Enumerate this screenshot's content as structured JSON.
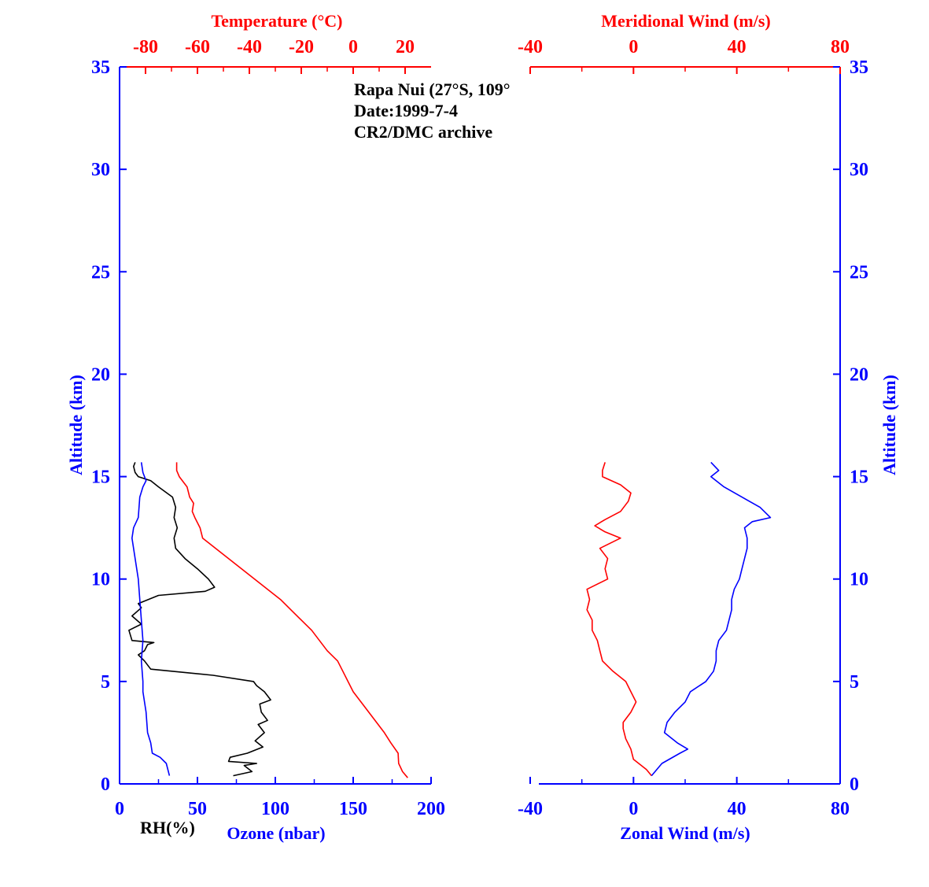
{
  "colors": {
    "blue": "#0000FF",
    "red": "#FF0000",
    "black": "#000000"
  },
  "annotation": {
    "line1": "Rapa Nui (27°S, 109°",
    "line2": "Date:1999-7-4",
    "line3": "CR2/DMC archive"
  },
  "chart_data": [
    {
      "type": "line",
      "panel": "left",
      "top_axis": {
        "label": "Temperature (°C)",
        "range": [
          -90,
          30
        ],
        "ticks": [
          -80,
          -60,
          -40,
          -20,
          0,
          20
        ],
        "color": "#FF0000"
      },
      "bottom_axis": {
        "label": "Ozone (nbar)",
        "secondary_label": "RH(%)",
        "range": [
          0,
          200
        ],
        "ticks": [
          0,
          50,
          100,
          150,
          200
        ],
        "color": "#0000FF"
      },
      "y_axis": {
        "label": "Altitude (km)",
        "range": [
          0,
          35
        ],
        "ticks": [
          0,
          5,
          10,
          15,
          20,
          25,
          30,
          35
        ],
        "color": "#0000FF"
      },
      "series": [
        {
          "name": "Temperature (°C)",
          "axis": "top",
          "color": "#FF0000",
          "points": [
            [
              21,
              0.3
            ],
            [
              19,
              0.6
            ],
            [
              17.5,
              1
            ],
            [
              17.3,
              1.5
            ],
            [
              14.5,
              2
            ],
            [
              12,
              2.5
            ],
            [
              9,
              3
            ],
            [
              6,
              3.5
            ],
            [
              3,
              4
            ],
            [
              0,
              4.5
            ],
            [
              -2,
              5
            ],
            [
              -4,
              5.5
            ],
            [
              -6,
              6
            ],
            [
              -10,
              6.5
            ],
            [
              -13,
              7
            ],
            [
              -16,
              7.5
            ],
            [
              -20,
              8
            ],
            [
              -24,
              8.5
            ],
            [
              -28,
              9
            ],
            [
              -33,
              9.5
            ],
            [
              -38,
              10
            ],
            [
              -43,
              10.5
            ],
            [
              -48,
              11
            ],
            [
              -53,
              11.5
            ],
            [
              -58,
              12
            ],
            [
              -59,
              12.5
            ],
            [
              -61,
              13
            ],
            [
              -62,
              13.3
            ],
            [
              -61.5,
              13.7
            ],
            [
              -63,
              14
            ],
            [
              -64,
              14.5
            ],
            [
              -67,
              15
            ],
            [
              -68,
              15.3
            ],
            [
              -68,
              15.7
            ]
          ]
        },
        {
          "name": "RH(%)",
          "axis": "bottom",
          "color": "#000000",
          "points": [
            [
              73,
              0.4
            ],
            [
              85,
              0.6
            ],
            [
              80,
              0.9
            ],
            [
              88,
              1.0
            ],
            [
              70,
              1.1
            ],
            [
              71,
              1.3
            ],
            [
              82,
              1.5
            ],
            [
              92,
              1.8
            ],
            [
              87,
              2.1
            ],
            [
              93,
              2.5
            ],
            [
              89,
              2.9
            ],
            [
              95,
              3.1
            ],
            [
              91,
              3.5
            ],
            [
              90,
              3.9
            ],
            [
              97,
              4.1
            ],
            [
              93,
              4.5
            ],
            [
              88,
              4.8
            ],
            [
              86,
              5.0
            ],
            [
              60,
              5.3
            ],
            [
              20,
              5.6
            ],
            [
              16,
              6.0
            ],
            [
              12,
              6.3
            ],
            [
              16,
              6.5
            ],
            [
              18,
              6.8
            ],
            [
              22,
              6.9
            ],
            [
              8,
              7.0
            ],
            [
              6,
              7.5
            ],
            [
              14,
              7.8
            ],
            [
              8,
              8.2
            ],
            [
              14,
              8.6
            ],
            [
              12,
              8.8
            ],
            [
              25,
              9.2
            ],
            [
              55,
              9.4
            ],
            [
              61,
              9.6
            ],
            [
              57,
              10
            ],
            [
              50,
              10.5
            ],
            [
              42,
              11
            ],
            [
              36,
              11.5
            ],
            [
              35,
              12
            ],
            [
              37,
              12.5
            ],
            [
              35,
              13
            ],
            [
              36,
              13.5
            ],
            [
              34,
              14
            ],
            [
              25,
              14.5
            ],
            [
              20,
              14.8
            ],
            [
              12,
              15
            ],
            [
              10,
              15.2
            ],
            [
              9,
              15.5
            ],
            [
              10,
              15.7
            ]
          ]
        },
        {
          "name": "Ozone (nbar)",
          "axis": "bottom",
          "color": "#0000FF",
          "points": [
            [
              32,
              0.4
            ],
            [
              30,
              1
            ],
            [
              26,
              1.3
            ],
            [
              21,
              1.5
            ],
            [
              20,
              2.0
            ],
            [
              18,
              2.5
            ],
            [
              17,
              3.5
            ],
            [
              15,
              4.5
            ],
            [
              15,
              5
            ],
            [
              14,
              6
            ],
            [
              15,
              7
            ],
            [
              14,
              8
            ],
            [
              13,
              9
            ],
            [
              12,
              10
            ],
            [
              10,
              11
            ],
            [
              8,
              12
            ],
            [
              9,
              12.5
            ],
            [
              12,
              13
            ],
            [
              13,
              14
            ],
            [
              15,
              14.5
            ],
            [
              17,
              14.8
            ],
            [
              15,
              15.2
            ],
            [
              14,
              15.7
            ]
          ]
        }
      ]
    },
    {
      "type": "line",
      "panel": "right",
      "top_axis": {
        "label": "Meridional Wind (m/s)",
        "range": [
          -40,
          80
        ],
        "ticks": [
          -40,
          0,
          40,
          80
        ],
        "color": "#FF0000"
      },
      "bottom_axis": {
        "label": "Zonal Wind (m/s)",
        "range": [
          -40,
          80
        ],
        "ticks": [
          -40,
          0,
          40,
          80
        ],
        "color": "#0000FF"
      },
      "y_axis": {
        "label": "Altitude (km)",
        "range": [
          0,
          35
        ],
        "ticks": [
          0,
          5,
          10,
          15,
          20,
          25,
          30,
          35
        ],
        "color": "#0000FF"
      },
      "series": [
        {
          "name": "Meridional Wind (m/s)",
          "axis": "top",
          "color": "#FF0000",
          "points": [
            [
              7,
              0.4
            ],
            [
              5,
              0.7
            ],
            [
              0,
              1.2
            ],
            [
              -1,
              1.7
            ],
            [
              -3,
              2.2
            ],
            [
              -4,
              2.7
            ],
            [
              -4,
              3.0
            ],
            [
              -1,
              3.5
            ],
            [
              1,
              4.0
            ],
            [
              -1,
              4.5
            ],
            [
              -3,
              5.0
            ],
            [
              -8,
              5.5
            ],
            [
              -12,
              6.0
            ],
            [
              -13,
              6.5
            ],
            [
              -14,
              7.0
            ],
            [
              -16,
              7.5
            ],
            [
              -16,
              8.0
            ],
            [
              -18,
              8.5
            ],
            [
              -17,
              9.0
            ],
            [
              -18,
              9.5
            ],
            [
              -10,
              10.0
            ],
            [
              -11,
              10.5
            ],
            [
              -10,
              11.0
            ],
            [
              -13,
              11.5
            ],
            [
              -5,
              12.0
            ],
            [
              -11,
              12.3
            ],
            [
              -15,
              12.6
            ],
            [
              -11,
              12.9
            ],
            [
              -5,
              13.3
            ],
            [
              -2,
              13.8
            ],
            [
              -1,
              14.2
            ],
            [
              -5,
              14.6
            ],
            [
              -12,
              15.0
            ],
            [
              -12,
              15.3
            ],
            [
              -11,
              15.7
            ]
          ]
        },
        {
          "name": "Zonal Wind (m/s)",
          "axis": "bottom",
          "color": "#0000FF",
          "points": [
            [
              7,
              0.4
            ],
            [
              11,
              1.0
            ],
            [
              18,
              1.5
            ],
            [
              21,
              1.7
            ],
            [
              17,
              2.0
            ],
            [
              12,
              2.5
            ],
            [
              13,
              3.0
            ],
            [
              16,
              3.5
            ],
            [
              20,
              4.0
            ],
            [
              22,
              4.5
            ],
            [
              28,
              5.0
            ],
            [
              31,
              5.5
            ],
            [
              32,
              6.0
            ],
            [
              32,
              6.5
            ],
            [
              33,
              7.0
            ],
            [
              36,
              7.5
            ],
            [
              37,
              8.0
            ],
            [
              38,
              8.5
            ],
            [
              38,
              9.0
            ],
            [
              39,
              9.5
            ],
            [
              41,
              10.0
            ],
            [
              42,
              10.5
            ],
            [
              43,
              11.0
            ],
            [
              44,
              11.5
            ],
            [
              44,
              12.0
            ],
            [
              43,
              12.5
            ],
            [
              46,
              12.8
            ],
            [
              53,
              13.0
            ],
            [
              49,
              13.5
            ],
            [
              42,
              14.0
            ],
            [
              35,
              14.5
            ],
            [
              30,
              15.0
            ],
            [
              33,
              15.3
            ],
            [
              30,
              15.7
            ]
          ]
        }
      ]
    }
  ]
}
